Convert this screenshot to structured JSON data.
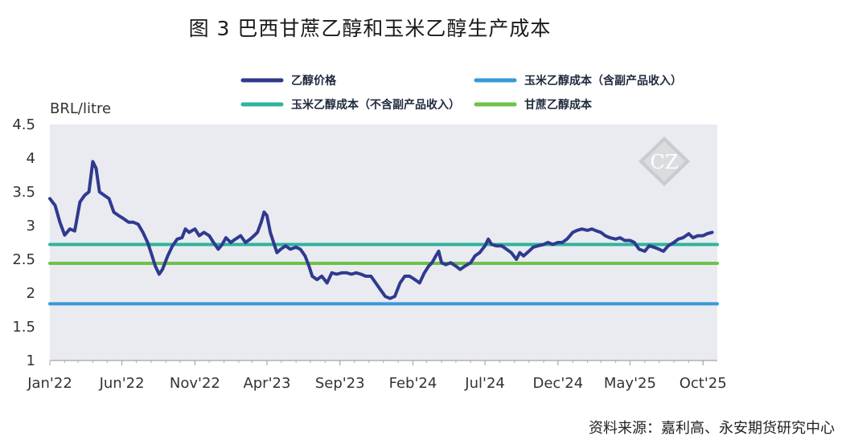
{
  "figure_title": "图 3 巴西甘蔗乙醇和玉米乙醇生产成本",
  "source": "资料来源：嘉利高、永安期货研究中心",
  "watermark_text": "CZ",
  "chart_data": {
    "type": "line",
    "ylabel": "BRL/litre",
    "ylim": [
      1,
      4.5
    ],
    "yticks": [
      "4.5",
      "4",
      "3.5",
      "3",
      "2.5",
      "2",
      "1.5",
      "1"
    ],
    "xticks": [
      "Jan'22",
      "Jun'22",
      "Nov'22",
      "Apr'23",
      "Sep'23",
      "Feb'24",
      "Jul'24",
      "Dec'24",
      "May'25",
      "Oct'25"
    ],
    "x_start": "2022-01-01",
    "x_end": "2025-10-31",
    "grid": false,
    "legend_position": "top",
    "colors": {
      "plot_bg": "#e9ebf0",
      "ethanol_price": "#2f3a8f",
      "corn_cost_with_byproducts": "#3a98d8",
      "corn_cost_without_byproducts": "#2eb39c",
      "sugarcane_cost": "#6cc24a"
    },
    "series": [
      {
        "name": "乙醇价格",
        "color": "#2f3a8f",
        "points": [
          [
            "2022-01-01",
            3.4
          ],
          [
            "2022-01-12",
            3.3
          ],
          [
            "2022-01-22",
            3.05
          ],
          [
            "2022-02-01",
            2.86
          ],
          [
            "2022-02-12",
            2.95
          ],
          [
            "2022-02-22",
            2.92
          ],
          [
            "2022-03-05",
            3.35
          ],
          [
            "2022-03-15",
            3.45
          ],
          [
            "2022-03-24",
            3.5
          ],
          [
            "2022-04-01",
            3.95
          ],
          [
            "2022-04-08",
            3.85
          ],
          [
            "2022-04-15",
            3.5
          ],
          [
            "2022-04-25",
            3.45
          ],
          [
            "2022-05-05",
            3.4
          ],
          [
            "2022-05-15",
            3.2
          ],
          [
            "2022-05-25",
            3.15
          ],
          [
            "2022-06-05",
            3.1
          ],
          [
            "2022-06-15",
            3.05
          ],
          [
            "2022-06-25",
            3.05
          ],
          [
            "2022-07-05",
            3.02
          ],
          [
            "2022-07-15",
            2.9
          ],
          [
            "2022-07-25",
            2.75
          ],
          [
            "2022-08-01",
            2.6
          ],
          [
            "2022-08-10",
            2.4
          ],
          [
            "2022-08-18",
            2.28
          ],
          [
            "2022-08-25",
            2.35
          ],
          [
            "2022-09-05",
            2.55
          ],
          [
            "2022-09-15",
            2.7
          ],
          [
            "2022-09-25",
            2.8
          ],
          [
            "2022-10-05",
            2.82
          ],
          [
            "2022-10-12",
            2.95
          ],
          [
            "2022-10-20",
            2.9
          ],
          [
            "2022-11-01",
            2.95
          ],
          [
            "2022-11-10",
            2.85
          ],
          [
            "2022-11-20",
            2.9
          ],
          [
            "2022-12-01",
            2.85
          ],
          [
            "2022-12-10",
            2.75
          ],
          [
            "2022-12-20",
            2.65
          ],
          [
            "2022-12-28",
            2.72
          ],
          [
            "2023-01-05",
            2.82
          ],
          [
            "2023-01-15",
            2.75
          ],
          [
            "2023-01-25",
            2.8
          ],
          [
            "2023-02-05",
            2.85
          ],
          [
            "2023-02-15",
            2.75
          ],
          [
            "2023-02-25",
            2.8
          ],
          [
            "2023-03-05",
            2.85
          ],
          [
            "2023-03-12",
            2.9
          ],
          [
            "2023-03-20",
            3.05
          ],
          [
            "2023-03-26",
            3.2
          ],
          [
            "2023-04-01",
            3.15
          ],
          [
            "2023-04-08",
            2.9
          ],
          [
            "2023-04-15",
            2.75
          ],
          [
            "2023-04-22",
            2.6
          ],
          [
            "2023-04-30",
            2.65
          ],
          [
            "2023-05-10",
            2.7
          ],
          [
            "2023-05-20",
            2.65
          ],
          [
            "2023-06-01",
            2.68
          ],
          [
            "2023-06-10",
            2.65
          ],
          [
            "2023-06-20",
            2.55
          ],
          [
            "2023-06-28",
            2.4
          ],
          [
            "2023-07-05",
            2.25
          ],
          [
            "2023-07-15",
            2.2
          ],
          [
            "2023-07-25",
            2.25
          ],
          [
            "2023-08-05",
            2.15
          ],
          [
            "2023-08-15",
            2.3
          ],
          [
            "2023-08-25",
            2.28
          ],
          [
            "2023-09-05",
            2.3
          ],
          [
            "2023-09-15",
            2.3
          ],
          [
            "2023-09-25",
            2.28
          ],
          [
            "2023-10-05",
            2.3
          ],
          [
            "2023-10-15",
            2.28
          ],
          [
            "2023-10-25",
            2.25
          ],
          [
            "2023-11-05",
            2.25
          ],
          [
            "2023-11-15",
            2.15
          ],
          [
            "2023-11-25",
            2.05
          ],
          [
            "2023-12-05",
            1.95
          ],
          [
            "2023-12-15",
            1.92
          ],
          [
            "2023-12-25",
            1.95
          ],
          [
            "2024-01-05",
            2.15
          ],
          [
            "2024-01-15",
            2.25
          ],
          [
            "2024-01-25",
            2.25
          ],
          [
            "2024-02-05",
            2.2
          ],
          [
            "2024-02-15",
            2.15
          ],
          [
            "2024-02-25",
            2.3
          ],
          [
            "2024-03-05",
            2.4
          ],
          [
            "2024-03-12",
            2.45
          ],
          [
            "2024-03-20",
            2.55
          ],
          [
            "2024-03-26",
            2.62
          ],
          [
            "2024-04-01",
            2.45
          ],
          [
            "2024-04-10",
            2.42
          ],
          [
            "2024-04-20",
            2.45
          ],
          [
            "2024-05-01",
            2.4
          ],
          [
            "2024-05-10",
            2.35
          ],
          [
            "2024-05-20",
            2.4
          ],
          [
            "2024-06-01",
            2.45
          ],
          [
            "2024-06-10",
            2.55
          ],
          [
            "2024-06-20",
            2.6
          ],
          [
            "2024-07-01",
            2.7
          ],
          [
            "2024-07-08",
            2.8
          ],
          [
            "2024-07-15",
            2.72
          ],
          [
            "2024-07-25",
            2.7
          ],
          [
            "2024-08-05",
            2.7
          ],
          [
            "2024-08-15",
            2.65
          ],
          [
            "2024-08-25",
            2.6
          ],
          [
            "2024-09-05",
            2.5
          ],
          [
            "2024-09-12",
            2.6
          ],
          [
            "2024-09-20",
            2.55
          ],
          [
            "2024-10-01",
            2.62
          ],
          [
            "2024-10-10",
            2.68
          ],
          [
            "2024-10-20",
            2.7
          ],
          [
            "2024-11-01",
            2.72
          ],
          [
            "2024-11-10",
            2.75
          ],
          [
            "2024-11-20",
            2.72
          ],
          [
            "2024-12-01",
            2.75
          ],
          [
            "2024-12-10",
            2.75
          ],
          [
            "2024-12-20",
            2.8
          ],
          [
            "2025-01-01",
            2.9
          ],
          [
            "2025-01-10",
            2.93
          ],
          [
            "2025-01-20",
            2.95
          ],
          [
            "2025-02-01",
            2.93
          ],
          [
            "2025-02-10",
            2.95
          ],
          [
            "2025-02-20",
            2.92
          ],
          [
            "2025-03-01",
            2.9
          ],
          [
            "2025-03-10",
            2.85
          ],
          [
            "2025-03-20",
            2.82
          ],
          [
            "2025-04-01",
            2.8
          ],
          [
            "2025-04-10",
            2.82
          ],
          [
            "2025-04-20",
            2.78
          ],
          [
            "2025-05-01",
            2.78
          ],
          [
            "2025-05-10",
            2.75
          ],
          [
            "2025-05-20",
            2.65
          ],
          [
            "2025-06-01",
            2.62
          ],
          [
            "2025-06-10",
            2.7
          ],
          [
            "2025-06-20",
            2.68
          ],
          [
            "2025-07-01",
            2.65
          ],
          [
            "2025-07-10",
            2.62
          ],
          [
            "2025-07-20",
            2.7
          ],
          [
            "2025-08-01",
            2.75
          ],
          [
            "2025-08-10",
            2.8
          ],
          [
            "2025-08-20",
            2.82
          ],
          [
            "2025-09-01",
            2.88
          ],
          [
            "2025-09-10",
            2.82
          ],
          [
            "2025-09-20",
            2.85
          ],
          [
            "2025-10-01",
            2.85
          ],
          [
            "2025-10-10",
            2.88
          ],
          [
            "2025-10-20",
            2.9
          ]
        ]
      },
      {
        "name": "玉米乙醇成本（含副产品收入）",
        "color": "#3a98d8",
        "points": [
          [
            "2022-01-01",
            1.84
          ],
          [
            "2025-10-31",
            1.84
          ]
        ]
      },
      {
        "name": "玉米乙醇成本（不含副产品收入）",
        "color": "#2eb39c",
        "points": [
          [
            "2022-01-01",
            2.72
          ],
          [
            "2025-10-31",
            2.72
          ]
        ]
      },
      {
        "name": "甘蔗乙醇成本",
        "color": "#6cc24a",
        "points": [
          [
            "2022-01-01",
            2.44
          ],
          [
            "2025-10-31",
            2.44
          ]
        ]
      }
    ]
  }
}
